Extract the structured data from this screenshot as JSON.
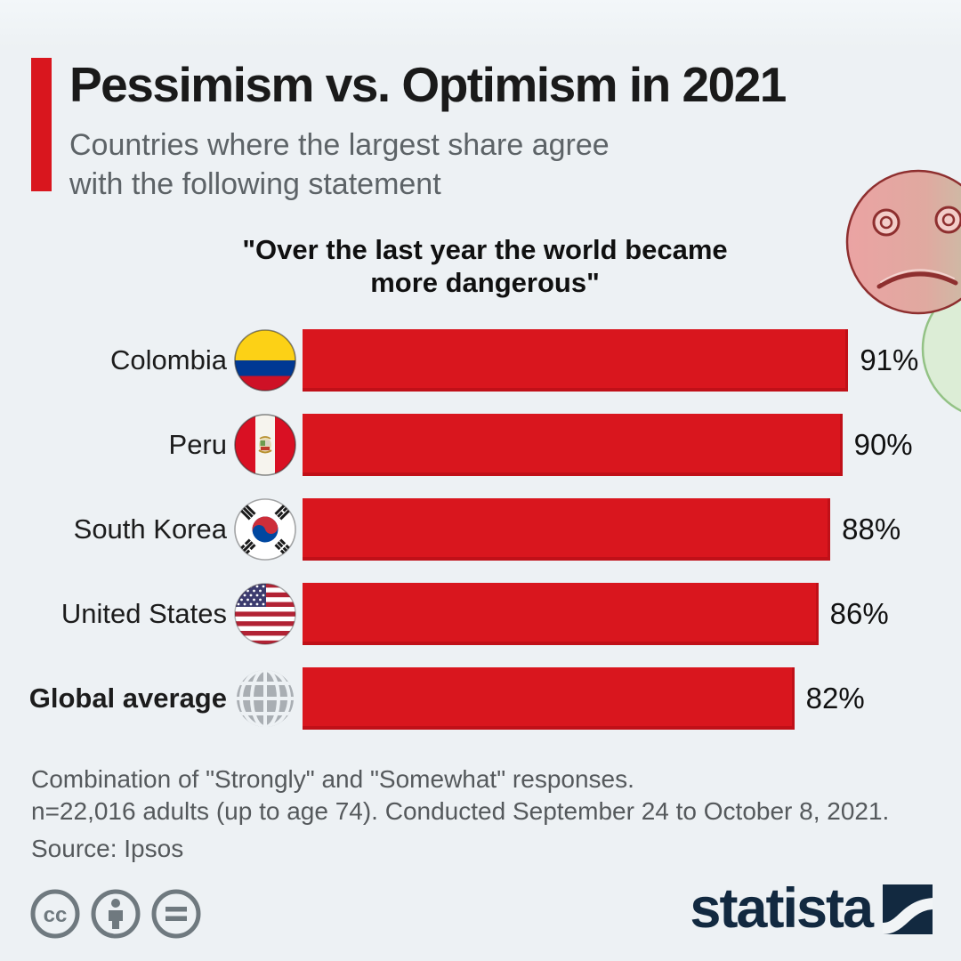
{
  "page": {
    "background": "#edf1f4",
    "accent_color": "#d9161e"
  },
  "header": {
    "title": "Pessimism vs. Optimism in 2021",
    "subtitle_line1": "Countries where the largest share agree",
    "subtitle_line2": "with the following statement"
  },
  "chart_data": {
    "type": "bar",
    "orientation": "horizontal",
    "title": "\"Over the last year the world became more dangerous\"",
    "categories": [
      "Colombia",
      "Peru",
      "South Korea",
      "United States",
      "Global average"
    ],
    "values": [
      91,
      90,
      88,
      86,
      82
    ],
    "value_labels": [
      "91%",
      "90%",
      "88%",
      "86%",
      "82%"
    ],
    "unit": "%",
    "xlim": [
      0,
      100
    ],
    "bar_color": "#d9161e",
    "flag_icons": [
      "colombia-flag",
      "peru-flag",
      "south-korea-flag",
      "united-states-flag",
      "globe-icon"
    ],
    "legend": null,
    "grid": false
  },
  "footnotes": {
    "line1": "Combination of \"Strongly\" and \"Somewhat\" responses.",
    "line2": "n=22,016 adults (up to age 74). Conducted September 24 to October 8, 2021.",
    "source": "Source: Ipsos"
  },
  "branding": {
    "logo_text": "statista",
    "license_icons": [
      "creative-commons",
      "attribution",
      "no-derivatives"
    ]
  }
}
